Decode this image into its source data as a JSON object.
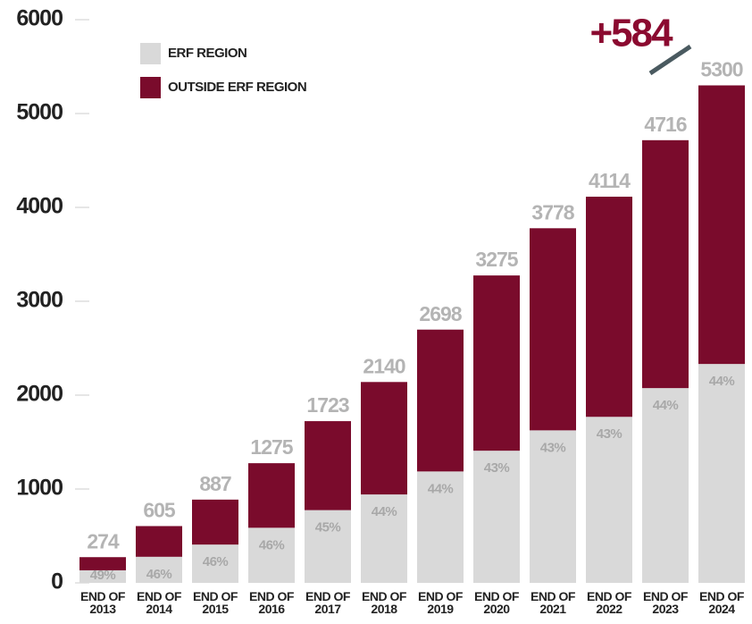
{
  "chart_data": {
    "type": "stacked_bar",
    "categories": [
      "END OF 2013",
      "END OF 2014",
      "END OF 2015",
      "END OF 2016",
      "END OF 2017",
      "END OF 2018",
      "END OF 2019",
      "END OF 2020",
      "END OF 2021",
      "END OF 2022",
      "END OF 2023",
      "END OF 2024"
    ],
    "series": [
      {
        "name": "ERF REGION",
        "color": "#d9d9d9",
        "values": [
          134,
          278,
          408,
          587,
          775,
          942,
          1187,
          1408,
          1625,
          1769,
          2075,
          2332
        ]
      },
      {
        "name": "OUTSIDE ERF REGION",
        "color": "#7a0b2c",
        "values": [
          140,
          327,
          479,
          688,
          948,
          1198,
          1511,
          1867,
          2153,
          2345,
          2641,
          2968
        ]
      }
    ],
    "totals": [
      274,
      605,
      887,
      1275,
      1723,
      2140,
      2698,
      3275,
      3778,
      4114,
      4716,
      5300
    ],
    "share_labels": [
      "49%",
      "46%",
      "46%",
      "46%",
      "45%",
      "44%",
      "44%",
      "43%",
      "43%",
      "43%",
      "44%",
      "44%"
    ],
    "annotation": {
      "text": "+584",
      "color": "#8b0a30"
    },
    "ylim": [
      0,
      6000
    ],
    "yticks": [
      0,
      1000,
      2000,
      3000,
      4000,
      5000,
      6000
    ]
  }
}
